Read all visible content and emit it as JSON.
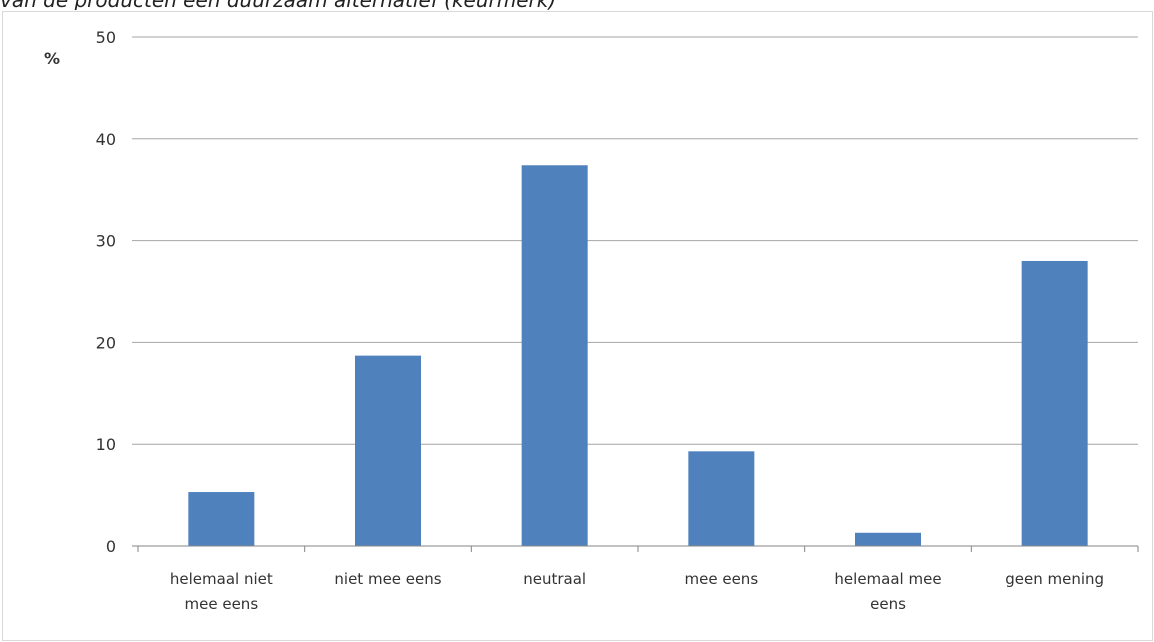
{
  "caption": "van de producten een duurzaam alternatief (keurmerk)",
  "chart_data": {
    "type": "bar",
    "title": "",
    "xlabel": "",
    "ylabel": "%",
    "ylim": [
      0,
      50
    ],
    "yticks": [
      0,
      10,
      20,
      30,
      40,
      50
    ],
    "grid": true,
    "categories": [
      [
        "helemaal niet",
        "mee eens"
      ],
      [
        "niet mee eens"
      ],
      [
        "neutraal"
      ],
      [
        "mee eens"
      ],
      [
        "helemaal mee",
        "eens"
      ],
      [
        "geen mening"
      ]
    ],
    "values": [
      5.3,
      18.7,
      37.4,
      9.3,
      1.3,
      28.0
    ],
    "bar_color": "#4f81bd",
    "grid_color": "#a6a6a6"
  }
}
